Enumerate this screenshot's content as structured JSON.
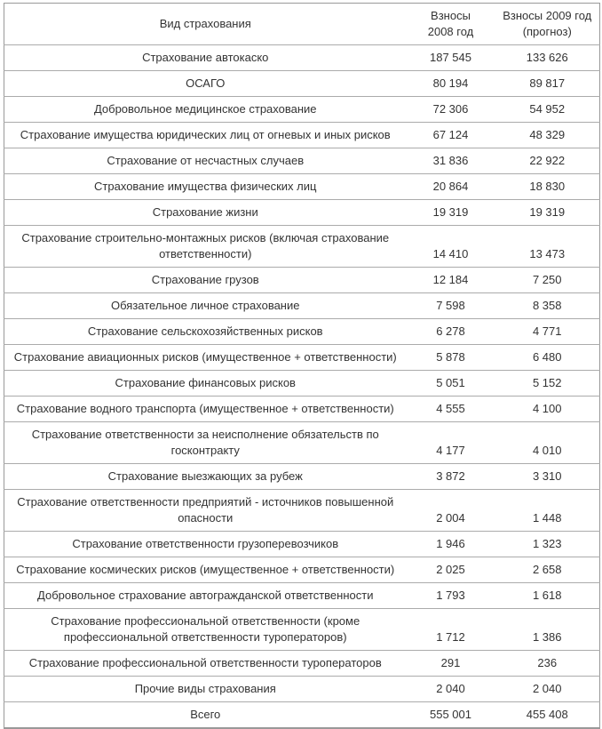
{
  "colors": {
    "text": "#333333",
    "border_outer": "#999999",
    "border_inner": "#ababab",
    "background": "#ffffff"
  },
  "table": {
    "header": {
      "col1": "Вид страхования",
      "col2_line1": "Взносы",
      "col2_line2": "2008 год",
      "col3_line1": "Взносы 2009 год",
      "col3_line2": "(прогноз)"
    },
    "rows": [
      {
        "type": "Страхование автокаско",
        "v2008": "187 545",
        "v2009": "133 626"
      },
      {
        "type": "ОСАГО",
        "v2008": "80 194",
        "v2009": "89 817"
      },
      {
        "type": "Добровольное медицинское страхование",
        "v2008": "72 306",
        "v2009": "54 952"
      },
      {
        "type": "Страхование имущества юридических лиц от огневых и иных рисков",
        "v2008": "67 124",
        "v2009": "48 329"
      },
      {
        "type": "Страхование от несчастных случаев",
        "v2008": "31 836",
        "v2009": "22 922"
      },
      {
        "type": "Страхование имущества физических лиц",
        "v2008": "20 864",
        "v2009": "18 830"
      },
      {
        "type": "Страхование жизни",
        "v2008": "19 319",
        "v2009": "19 319"
      },
      {
        "type": "Страхование строительно-монтажных рисков (включая страхование ответственности)",
        "v2008": "14 410",
        "v2009": "13 473"
      },
      {
        "type": "Страхование грузов",
        "v2008": "12 184",
        "v2009": "7 250"
      },
      {
        "type": "Обязательное личное страхование",
        "v2008": "7 598",
        "v2009": "8 358"
      },
      {
        "type": "Страхование сельскохозяйственных рисков",
        "v2008": "6 278",
        "v2009": "4 771"
      },
      {
        "type": "Страхование авиационных рисков (имущественное + ответственности)",
        "v2008": "5 878",
        "v2009": "6 480"
      },
      {
        "type": "Страхование финансовых рисков",
        "v2008": "5 051",
        "v2009": "5 152"
      },
      {
        "type": "Страхование водного транспорта (имущественное + ответственности)",
        "v2008": "4 555",
        "v2009": "4 100"
      },
      {
        "type": "Страхование ответственности за неисполнение обязательств по госконтракту",
        "v2008": "4 177",
        "v2009": "4 010"
      },
      {
        "type": "Страхование выезжающих за рубеж",
        "v2008": "3 872",
        "v2009": "3 310"
      },
      {
        "type": "Страхование ответственности предприятий - источников повышенной опасности",
        "v2008": "2 004",
        "v2009": "1 448"
      },
      {
        "type": "Страхование ответственности грузоперевозчиков",
        "v2008": "1 946",
        "v2009": "1 323"
      },
      {
        "type": "Страхование космических рисков (имущественное + ответственности)",
        "v2008": "2 025",
        "v2009": "2 658"
      },
      {
        "type": "Добровольное страхование автогражданской ответственности",
        "v2008": "1 793",
        "v2009": "1 618"
      },
      {
        "type": "Страхование профессиональной ответственности (кроме профессиональной ответственности туроператоров)",
        "v2008": "1 712",
        "v2009": "1 386"
      },
      {
        "type": "Страхование профессиональной ответственности туроператоров",
        "v2008": "291",
        "v2009": "236"
      },
      {
        "type": "Прочие виды страхования",
        "v2008": "2 040",
        "v2009": "2 040"
      },
      {
        "type": "Всего",
        "v2008": "555 001",
        "v2009": "455 408",
        "is_total": true
      }
    ]
  }
}
